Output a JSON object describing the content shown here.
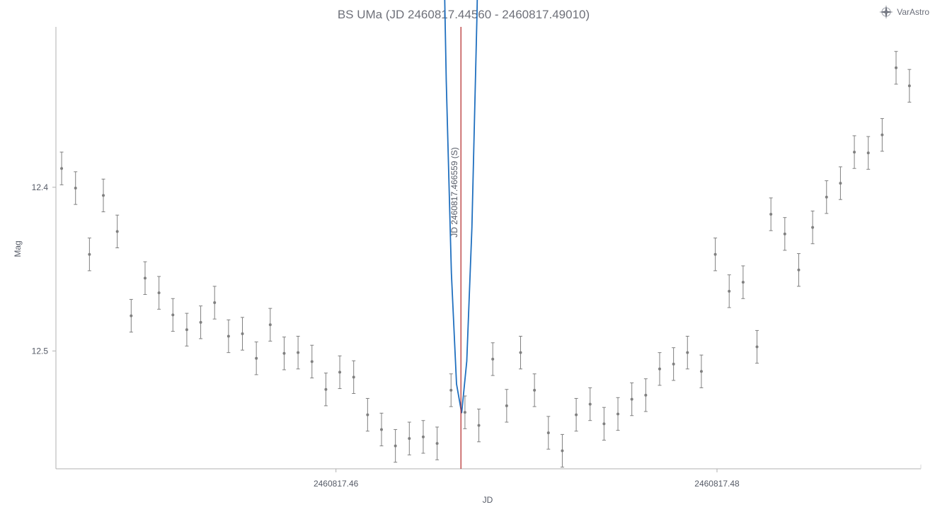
{
  "brand": {
    "name": "VarAstro",
    "icon": "compass-star-icon"
  },
  "colors": {
    "fit": "#1f6fbf",
    "points": "#808080",
    "errorbars": "#808080",
    "marker": "#b22222",
    "axis": "#b0b0b0"
  },
  "chart_data": {
    "type": "scatter",
    "title": "BS UMa (JD 2460817.44560 - 2460817.49010)",
    "xlabel": "JD",
    "ylabel": "Mag",
    "xlim": [
      2460817.4453,
      2460817.4907
    ],
    "ylim": [
      12.572,
      12.302
    ],
    "y_inverted": true,
    "x_ticks": [
      {
        "value": 2460817.46,
        "label": "2460817.46"
      },
      {
        "value": 2460817.48,
        "label": "2460817.48"
      }
    ],
    "y_ticks": [
      {
        "value": 12.4,
        "label": "12.4"
      },
      {
        "value": 12.5,
        "label": "12.5"
      }
    ],
    "grid": false,
    "marker": {
      "x": 2460817.466559,
      "label": "JD 2460817.466559 (S)"
    },
    "series": [
      {
        "kind": "points_with_errorbars",
        "err": 0.01,
        "points": [
          [
            2460817.4456,
            12.3885
          ],
          [
            2460817.44633,
            12.4005
          ],
          [
            2460817.44706,
            12.441
          ],
          [
            2460817.44779,
            12.405
          ],
          [
            2460817.44852,
            12.427
          ],
          [
            2460817.44925,
            12.4785
          ],
          [
            2460817.44998,
            12.4555
          ],
          [
            2460817.45071,
            12.4645
          ],
          [
            2460817.45144,
            12.478
          ],
          [
            2460817.45217,
            12.487
          ],
          [
            2460817.4529,
            12.4825
          ],
          [
            2460817.45363,
            12.4705
          ],
          [
            2460817.45436,
            12.491
          ],
          [
            2460817.45509,
            12.4895
          ],
          [
            2460817.45582,
            12.5045
          ],
          [
            2460817.45655,
            12.484
          ],
          [
            2460817.45728,
            12.5015
          ],
          [
            2460817.45801,
            12.501
          ],
          [
            2460817.45874,
            12.5065
          ],
          [
            2460817.45947,
            12.5235
          ],
          [
            2460817.4602,
            12.513
          ],
          [
            2460817.46093,
            12.516
          ],
          [
            2460817.46166,
            12.539
          ],
          [
            2460817.46239,
            12.548
          ],
          [
            2460817.46312,
            12.558
          ],
          [
            2460817.46385,
            12.5535
          ],
          [
            2460817.46458,
            12.5525
          ],
          [
            2460817.46531,
            12.5565
          ],
          [
            2460817.46604,
            12.524
          ],
          [
            2460817.46677,
            12.5375
          ],
          [
            2460817.4675,
            12.5455
          ],
          [
            2460817.46823,
            12.505
          ],
          [
            2460817.46896,
            12.5335
          ],
          [
            2460817.46969,
            12.501
          ],
          [
            2460817.47042,
            12.524
          ],
          [
            2460817.47115,
            12.55
          ],
          [
            2460817.47188,
            12.561
          ],
          [
            2460817.47261,
            12.539
          ],
          [
            2460817.47334,
            12.5325
          ],
          [
            2460817.47407,
            12.5445
          ],
          [
            2460817.4748,
            12.5385
          ],
          [
            2460817.47553,
            12.5295
          ],
          [
            2460817.47626,
            12.527
          ],
          [
            2460817.47699,
            12.511
          ],
          [
            2460817.47772,
            12.508
          ],
          [
            2460817.47845,
            12.501
          ],
          [
            2460817.47918,
            12.5125
          ],
          [
            2460817.47991,
            12.441
          ],
          [
            2460817.48064,
            12.4635
          ],
          [
            2460817.48137,
            12.458
          ],
          [
            2460817.4821,
            12.4975
          ],
          [
            2460817.48283,
            12.4165
          ],
          [
            2460817.48356,
            12.4285
          ],
          [
            2460817.48429,
            12.4505
          ],
          [
            2460817.48502,
            12.4245
          ],
          [
            2460817.48575,
            12.406
          ],
          [
            2460817.48648,
            12.3975
          ],
          [
            2460817.48721,
            12.3785
          ],
          [
            2460817.48794,
            12.379
          ],
          [
            2460817.48867,
            12.368
          ],
          [
            2460817.4894,
            12.327
          ],
          [
            2460817.4901,
            12.338
          ]
        ]
      },
      {
        "kind": "fit_curve",
        "polynomial": {
          "x0": 2460817.466559,
          "a": 12.5385,
          "b": 0,
          "c": -343000
        },
        "range": [
          2460817.4456,
          2460817.48867
        ]
      }
    ]
  }
}
